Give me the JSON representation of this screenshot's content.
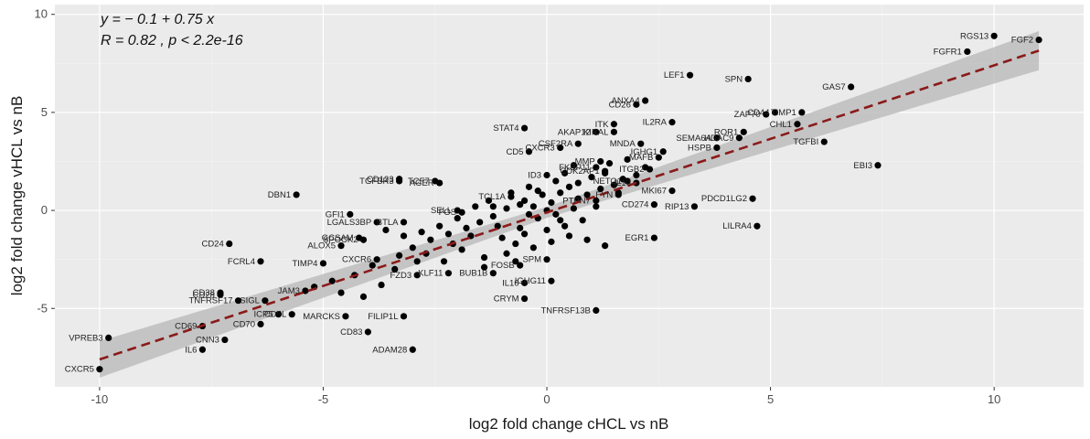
{
  "chart_data": {
    "type": "scatter",
    "xlabel": "log2 fold change cHCL vs nB",
    "ylabel": "log2 fold change vHCL vs nB",
    "xlim": [
      -11,
      12
    ],
    "ylim": [
      -9,
      10.5
    ],
    "x_ticks": [
      -10,
      -5,
      0,
      5,
      10
    ],
    "y_ticks": [
      -5,
      0,
      5,
      10
    ],
    "x_tick_labels": [
      "-10",
      "-5",
      "0",
      "5",
      "10"
    ],
    "y_tick_labels": [
      "-5",
      "0",
      "5",
      "10"
    ],
    "grid": true,
    "legend": "none",
    "annotation": {
      "equation": "y = − 0.1 + 0.75 x",
      "stats": "R = 0.82 , p < 2.2e-16"
    },
    "regression": {
      "intercept": -0.1,
      "slope": 0.75,
      "x_range": [
        -10,
        11
      ]
    },
    "colors": {
      "panel_background": "#ebebeb",
      "grid_major": "#ffffff",
      "grid_minor": "#f4f4f4",
      "points": "#000000",
      "regression_line": "#8b1a1a",
      "confidence_band": "#bdbdbd"
    },
    "labeled_points": [
      {
        "label": "RGS13",
        "x": 10.0,
        "y": 8.9
      },
      {
        "label": "FGF2",
        "x": 11.0,
        "y": 8.7
      },
      {
        "label": "FGFR1",
        "x": 9.4,
        "y": 8.1
      },
      {
        "label": "LEF1",
        "x": 3.2,
        "y": 6.9
      },
      {
        "label": "SPN",
        "x": 4.5,
        "y": 6.7
      },
      {
        "label": "GAS7",
        "x": 6.8,
        "y": 6.3
      },
      {
        "label": "ANXA4",
        "x": 2.2,
        "y": 5.6
      },
      {
        "label": "CD26",
        "x": 2.0,
        "y": 5.4
      },
      {
        "label": "ZAP70",
        "x": 4.9,
        "y": 4.9
      },
      {
        "label": "CD44",
        "x": 5.1,
        "y": 5.0
      },
      {
        "label": "TIMP1",
        "x": 5.7,
        "y": 5.0
      },
      {
        "label": "IL2RA",
        "x": 2.8,
        "y": 4.5
      },
      {
        "label": "CHL1",
        "x": 5.6,
        "y": 4.4
      },
      {
        "label": "ITK",
        "x": 1.5,
        "y": 4.4
      },
      {
        "label": "STAT4",
        "x": -0.5,
        "y": 4.2
      },
      {
        "label": "AKAP12",
        "x": 1.1,
        "y": 4.0
      },
      {
        "label": "KIRAL",
        "x": 1.5,
        "y": 4.0
      },
      {
        "label": "ROR1",
        "x": 4.4,
        "y": 4.0
      },
      {
        "label": "SEMA6A",
        "x": 3.8,
        "y": 3.7
      },
      {
        "label": "HDAC9",
        "x": 4.3,
        "y": 3.7
      },
      {
        "label": "TGFBI",
        "x": 6.2,
        "y": 3.5
      },
      {
        "label": "CSF2RA",
        "x": 0.7,
        "y": 3.4
      },
      {
        "label": "CXCR3",
        "x": 0.3,
        "y": 3.2
      },
      {
        "label": "MNDA",
        "x": 2.1,
        "y": 3.4
      },
      {
        "label": "HSPB",
        "x": 3.8,
        "y": 3.2
      },
      {
        "label": "IGHG1",
        "x": 2.6,
        "y": 3.0
      },
      {
        "label": "CD5",
        "x": -0.4,
        "y": 3.0
      },
      {
        "label": "MAFB",
        "x": 2.5,
        "y": 2.7
      },
      {
        "label": "EBI3",
        "x": 7.4,
        "y": 2.3
      },
      {
        "label": "MMP",
        "x": 1.2,
        "y": 2.5
      },
      {
        "label": "FKBP11",
        "x": 1.1,
        "y": 2.2
      },
      {
        "label": "CDK2AP1",
        "x": 1.3,
        "y": 2.0
      },
      {
        "label": "ITGB2",
        "x": 2.3,
        "y": 2.1
      },
      {
        "label": "ID3",
        "x": 0.0,
        "y": 1.8
      },
      {
        "label": "CD123",
        "x": -3.3,
        "y": 1.6
      },
      {
        "label": "TGFBR3",
        "x": -3.3,
        "y": 1.5
      },
      {
        "label": "AGER",
        "x": -2.4,
        "y": 1.4
      },
      {
        "label": "TCF7",
        "x": -2.5,
        "y": 1.5
      },
      {
        "label": "NETO1",
        "x": 1.8,
        "y": 1.5
      },
      {
        "label": "IL10",
        "x": 2.0,
        "y": 1.4
      },
      {
        "label": "MKI67",
        "x": 2.8,
        "y": 1.0
      },
      {
        "label": "DBN1",
        "x": -5.6,
        "y": 0.8
      },
      {
        "label": "PDCD1LG2",
        "x": 4.6,
        "y": 0.6
      },
      {
        "label": "TCL1A",
        "x": -0.8,
        "y": 0.7
      },
      {
        "label": "CD274",
        "x": 2.4,
        "y": 0.3
      },
      {
        "label": "RIP13",
        "x": 3.3,
        "y": 0.2
      },
      {
        "label": "FYN",
        "x": 1.6,
        "y": 0.8
      },
      {
        "label": "SELL",
        "x": -2.0,
        "y": 0.0
      },
      {
        "label": "FOS",
        "x": -1.9,
        "y": -0.1
      },
      {
        "label": "GFI1",
        "x": -4.4,
        "y": -0.2
      },
      {
        "label": "LGALS3BP",
        "x": -3.8,
        "y": -0.6
      },
      {
        "label": "BTLA",
        "x": -3.2,
        "y": -0.6
      },
      {
        "label": "GCSAM",
        "x": -4.2,
        "y": -1.4
      },
      {
        "label": "SPOCK2",
        "x": -4.1,
        "y": -1.5
      },
      {
        "label": "ALOX5",
        "x": -4.6,
        "y": -1.8
      },
      {
        "label": "LILRA4",
        "x": 4.7,
        "y": -0.8
      },
      {
        "label": "PTPN7",
        "x": 1.1,
        "y": 0.5
      },
      {
        "label": "EGR1",
        "x": 2.4,
        "y": -1.4
      },
      {
        "label": "CD24",
        "x": -7.1,
        "y": -1.7
      },
      {
        "label": "FCRL4",
        "x": -6.4,
        "y": -2.6
      },
      {
        "label": "TIMP4",
        "x": -5.0,
        "y": -2.7
      },
      {
        "label": "CXCR6",
        "x": -3.8,
        "y": -2.5
      },
      {
        "label": "FOSB",
        "x": -0.6,
        "y": -2.8
      },
      {
        "label": "SPM",
        "x": 0.0,
        "y": -2.5
      },
      {
        "label": "FZD3",
        "x": -2.9,
        "y": -3.3
      },
      {
        "label": "KLF11",
        "x": -2.2,
        "y": -3.2
      },
      {
        "label": "BUB1B",
        "x": -1.2,
        "y": -3.2
      },
      {
        "label": "IL16",
        "x": -0.5,
        "y": -3.7
      },
      {
        "label": "IGHG11",
        "x": 0.1,
        "y": -3.6
      },
      {
        "label": "CRYM",
        "x": -0.5,
        "y": -4.5
      },
      {
        "label": "TNFRSF13B",
        "x": 1.1,
        "y": -5.1
      },
      {
        "label": "CD38",
        "x": -7.3,
        "y": -4.2
      },
      {
        "label": "CD28",
        "x": -7.3,
        "y": -4.3
      },
      {
        "label": "TNFRSF17",
        "x": -6.9,
        "y": -4.6
      },
      {
        "label": "SIGL",
        "x": -6.3,
        "y": -4.6
      },
      {
        "label": "JAM3",
        "x": -5.4,
        "y": -4.1
      },
      {
        "label": "CD5L",
        "x": -5.7,
        "y": -5.3
      },
      {
        "label": "ICP5",
        "x": -6.0,
        "y": -5.3
      },
      {
        "label": "MARCKS",
        "x": -4.5,
        "y": -5.4
      },
      {
        "label": "FILIP1L",
        "x": -3.2,
        "y": -5.4
      },
      {
        "label": "CD70",
        "x": -6.4,
        "y": -5.8
      },
      {
        "label": "CD69",
        "x": -7.7,
        "y": -5.9
      },
      {
        "label": "VPREB3",
        "x": -9.8,
        "y": -6.5
      },
      {
        "label": "CNN3",
        "x": -7.2,
        "y": -6.6
      },
      {
        "label": "IL6",
        "x": -7.7,
        "y": -7.1
      },
      {
        "label": "CD83",
        "x": -4.0,
        "y": -6.2
      },
      {
        "label": "ADAM28",
        "x": -3.0,
        "y": -7.1
      },
      {
        "label": "CXCR5",
        "x": -10.0,
        "y": -8.1
      }
    ],
    "unlabeled_points": [
      [
        -0.5,
        0.5
      ],
      [
        -0.3,
        0.2
      ],
      [
        0.1,
        0.4
      ],
      [
        0.3,
        0.9
      ],
      [
        0.5,
        1.2
      ],
      [
        0.7,
        0.6
      ],
      [
        -0.9,
        0.1
      ],
      [
        -1.2,
        -0.3
      ],
      [
        -1.5,
        -0.6
      ],
      [
        -0.6,
        -0.9
      ],
      [
        -0.2,
        -0.4
      ],
      [
        0.2,
        -0.2
      ],
      [
        0.6,
        0.1
      ],
      [
        0.9,
        0.8
      ],
      [
        1.2,
        1.1
      ],
      [
        1.5,
        1.3
      ],
      [
        -1.8,
        -0.9
      ],
      [
        -2.2,
        -1.2
      ],
      [
        -2.6,
        -1.5
      ],
      [
        -3.0,
        -1.9
      ],
      [
        -1.0,
        -1.4
      ],
      [
        -0.7,
        -1.7
      ],
      [
        0.4,
        -0.8
      ],
      [
        0.8,
        -0.5
      ],
      [
        1.0,
        1.7
      ],
      [
        1.3,
        1.9
      ],
      [
        1.7,
        1.6
      ],
      [
        2.0,
        1.8
      ],
      [
        0.0,
        0.0
      ],
      [
        -0.1,
        0.8
      ],
      [
        -0.4,
        1.2
      ],
      [
        0.2,
        1.5
      ],
      [
        -1.3,
        0.5
      ],
      [
        -1.6,
        0.2
      ],
      [
        -2.0,
        -0.4
      ],
      [
        -2.4,
        -0.8
      ],
      [
        -2.8,
        -1.1
      ],
      [
        -3.2,
        -1.3
      ],
      [
        -3.6,
        -1.0
      ],
      [
        -2.7,
        -2.2
      ],
      [
        -2.3,
        -2.6
      ],
      [
        -1.9,
        -2.0
      ],
      [
        -1.4,
        -2.4
      ],
      [
        -0.9,
        -2.2
      ],
      [
        -0.3,
        -1.9
      ],
      [
        0.1,
        -1.6
      ],
      [
        0.5,
        -1.3
      ],
      [
        0.9,
        -1.5
      ],
      [
        1.3,
        -1.8
      ],
      [
        -3.9,
        -2.8
      ],
      [
        -3.4,
        -3.0
      ],
      [
        -4.3,
        -3.3
      ],
      [
        -4.8,
        -3.6
      ],
      [
        -5.2,
        -3.9
      ],
      [
        -4.6,
        -4.2
      ],
      [
        -4.1,
        -4.4
      ],
      [
        -3.7,
        -3.8
      ],
      [
        -0.8,
        0.9
      ],
      [
        -0.2,
        1.0
      ],
      [
        0.4,
        1.9
      ],
      [
        0.6,
        2.3
      ],
      [
        1.4,
        2.4
      ],
      [
        1.8,
        2.6
      ],
      [
        2.2,
        2.2
      ],
      [
        -1.1,
        -0.8
      ],
      [
        -0.5,
        -1.2
      ],
      [
        0.3,
        -0.5
      ],
      [
        0.0,
        -1.0
      ],
      [
        -0.6,
        0.3
      ],
      [
        -2.1,
        -1.7
      ],
      [
        -1.7,
        -1.3
      ],
      [
        -2.9,
        -2.6
      ],
      [
        -3.3,
        -2.3
      ],
      [
        -1.2,
        0.2
      ],
      [
        -0.4,
        -0.2
      ],
      [
        0.7,
        1.4
      ],
      [
        1.1,
        0.2
      ],
      [
        1.6,
        0.9
      ],
      [
        -1.4,
        -2.9
      ],
      [
        -0.7,
        -2.6
      ]
    ]
  }
}
